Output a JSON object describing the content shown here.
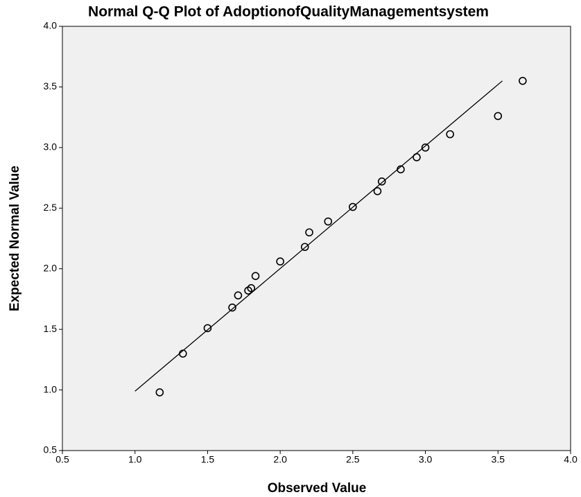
{
  "chart_data": {
    "type": "scatter",
    "title": "Normal Q-Q Plot of AdoptionofQualityManagementsystem",
    "x_label": "Observed Value",
    "y_label": "Expected Normal Value",
    "x": [
      1.17,
      1.33,
      1.5,
      1.67,
      1.71,
      1.78,
      1.8,
      1.83,
      2.0,
      2.17,
      2.2,
      2.33,
      2.5,
      2.67,
      2.7,
      2.83,
      2.94,
      3.0,
      3.17,
      3.5,
      3.67
    ],
    "y": [
      0.98,
      1.3,
      1.51,
      1.68,
      1.78,
      1.82,
      1.84,
      1.94,
      2.06,
      2.18,
      2.3,
      2.39,
      2.51,
      2.64,
      2.72,
      2.82,
      2.92,
      3.0,
      3.11,
      3.26,
      3.55
    ],
    "reference_line": {
      "x": [
        1.0,
        3.53
      ],
      "y": [
        0.99,
        3.55
      ]
    },
    "color": "#000000",
    "xlim": [
      0.5,
      4.0
    ],
    "ylim": [
      0.5,
      4.0
    ],
    "xticks": [
      0.5,
      {
        "value": 1.0,
        "label": "1.0"
      },
      1.5,
      {
        "value": 2.0,
        "label": "2.0"
      },
      2.5,
      {
        "value": 3.0,
        "label": "3.0"
      },
      3.5,
      {
        "value": 4.0,
        "label": "4.0"
      }
    ],
    "yticks": [
      0.5,
      {
        "value": 1.0,
        "label": "1.0"
      },
      1.5,
      {
        "value": 2.0,
        "label": "2.0"
      },
      2.5,
      {
        "value": 3.0,
        "label": "3.0"
      },
      3.5,
      {
        "value": 4.0,
        "label": "4.0"
      }
    ]
  }
}
